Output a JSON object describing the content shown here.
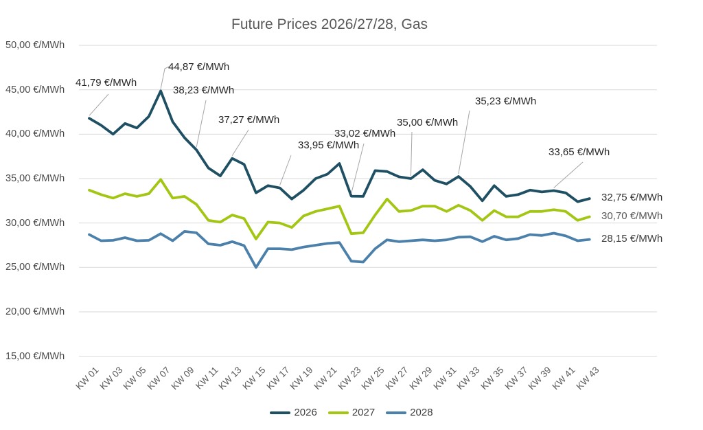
{
  "chart_data": {
    "type": "line",
    "title": "Future Prices 2026/27/28, Gas",
    "xlabel": "",
    "ylabel": "€/MWh",
    "x_tick_labels": [
      "KW 01",
      "KW 03",
      "KW 05",
      "KW 07",
      "KW 09",
      "KW 11",
      "KW 13",
      "KW 15",
      "KW 17",
      "KW 19",
      "KW 21",
      "KW 23",
      "KW 25",
      "KW 27",
      "KW 29",
      "KW 31",
      "KW 33",
      "KW 35",
      "KW 37",
      "KW 39",
      "KW 41",
      "KW 43"
    ],
    "x_categories_all_weeks": 43,
    "y_axis": {
      "min": 15,
      "max": 50,
      "step": 5,
      "tick_labels": [
        "50,00 €/MWh",
        "45,00 €/MWh",
        "40,00 €/MWh",
        "35,00 €/MWh",
        "30,00 €/MWh",
        "25,00 €/MWh",
        "20,00 €/MWh",
        "15,00 €/MWh"
      ]
    },
    "grid": "horizontal",
    "legend_position": "bottom",
    "series": [
      {
        "name": "2026",
        "color": "#1F4F63",
        "values": [
          41.79,
          41.0,
          40.0,
          41.2,
          40.7,
          42.0,
          44.87,
          41.4,
          39.6,
          38.23,
          36.2,
          35.3,
          37.27,
          36.6,
          33.4,
          34.2,
          33.95,
          32.7,
          33.7,
          35.0,
          35.5,
          36.7,
          33.02,
          33.0,
          35.9,
          35.8,
          35.2,
          35.0,
          36.0,
          34.8,
          34.4,
          35.23,
          34.1,
          32.5,
          34.2,
          33.0,
          33.2,
          33.7,
          33.5,
          33.65,
          33.4,
          32.4,
          32.75
        ]
      },
      {
        "name": "2027",
        "color": "#A2C613",
        "values": [
          33.7,
          33.2,
          32.8,
          33.3,
          33.0,
          33.3,
          34.9,
          32.8,
          33.0,
          32.1,
          30.3,
          30.1,
          30.9,
          30.5,
          28.2,
          30.1,
          30.0,
          29.5,
          30.8,
          31.3,
          31.6,
          31.9,
          28.8,
          28.9,
          30.9,
          32.7,
          31.3,
          31.4,
          31.9,
          31.9,
          31.3,
          32.0,
          31.4,
          30.3,
          31.4,
          30.7,
          30.7,
          31.3,
          31.3,
          31.5,
          31.3,
          30.3,
          30.7
        ]
      },
      {
        "name": "2028",
        "color": "#4B80AB",
        "values": [
          28.7,
          28.0,
          28.05,
          28.35,
          28.0,
          28.05,
          28.8,
          28.0,
          29.05,
          28.9,
          27.65,
          27.5,
          27.9,
          27.45,
          25.0,
          27.1,
          27.1,
          27.0,
          27.3,
          27.5,
          27.7,
          27.8,
          25.7,
          25.6,
          27.1,
          28.1,
          27.9,
          28.0,
          28.1,
          28.0,
          28.1,
          28.4,
          28.45,
          27.9,
          28.5,
          28.1,
          28.25,
          28.7,
          28.6,
          28.85,
          28.55,
          28.0,
          28.15
        ]
      }
    ],
    "annotations": [
      {
        "series": "2026",
        "week": 1,
        "label": "41,79 €/MWh"
      },
      {
        "series": "2026",
        "week": 7,
        "label": "44,87 €/MWh"
      },
      {
        "series": "2026",
        "week": 10,
        "label": "38,23 €/MWh"
      },
      {
        "series": "2026",
        "week": 13,
        "label": "37,27 €/MWh"
      },
      {
        "series": "2026",
        "week": 17,
        "label": "33,95 €/MWh"
      },
      {
        "series": "2026",
        "week": 23,
        "label": "33,02 €/MWh"
      },
      {
        "series": "2026",
        "week": 28,
        "label": "35,00 €/MWh"
      },
      {
        "series": "2026",
        "week": 32,
        "label": "35,23 €/MWh"
      },
      {
        "series": "2026",
        "week": 40,
        "label": "33,65 €/MWh"
      }
    ],
    "end_labels": [
      {
        "series": "2026",
        "label": "32,75 €/MWh",
        "color": "#333333"
      },
      {
        "series": "2027",
        "label": "30,70 €/MWh",
        "color": "#595959"
      },
      {
        "series": "2028",
        "label": "28,15 €/MWh",
        "color": "#404040"
      }
    ],
    "legend": [
      "2026",
      "2027",
      "2028"
    ]
  },
  "colors": {
    "background": "#ffffff",
    "gridline": "#D9D9D9",
    "title_text": "#595959",
    "axis_text": "#4a4a4a",
    "annotation_text": "#262626",
    "leader_line": "#A6A6A6"
  }
}
